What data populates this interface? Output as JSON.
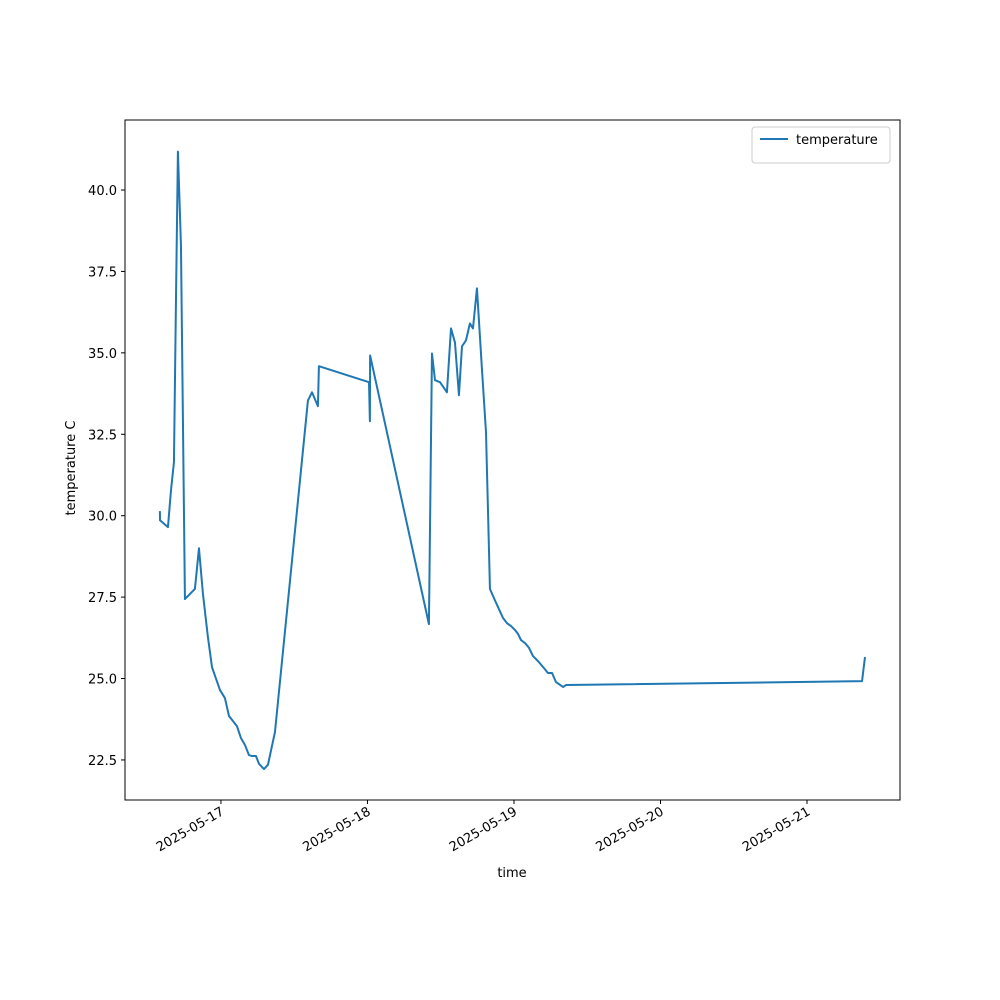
{
  "chart_data": {
    "type": "line",
    "x_label": "time",
    "y_label": "temperature C",
    "x": [
      "2025-05-16 14:00",
      "2025-05-16 14:01",
      "2025-05-16 15:19",
      "2025-05-16 15:49",
      "2025-05-16 16:18",
      "2025-05-16 16:38",
      "2025-05-16 16:57",
      "2025-05-16 17:27",
      "2025-05-16 18:06",
      "2025-05-16 19:44",
      "2025-05-16 20:24",
      "2025-05-16 21:03",
      "2025-05-16 21:52",
      "2025-05-16 22:32",
      "2025-05-16 23:11",
      "2025-05-16 23:50",
      "2025-05-17 00:39",
      "2025-05-17 01:19",
      "2025-05-17 02:37",
      "2025-05-17 03:17",
      "2025-05-17 03:56",
      "2025-05-17 04:35",
      "2025-05-17 05:05",
      "2025-05-17 05:44",
      "2025-05-17 06:14",
      "2025-05-17 07:03",
      "2025-05-17 07:42",
      "2025-05-17 08:51",
      "2025-05-17 14:15",
      "2025-05-17 14:55",
      "2025-05-17 15:53",
      "2025-05-17 16:03",
      "2025-05-18 00:15",
      "2025-05-18 00:24",
      "2025-05-18 00:26",
      "2025-05-18 10:04",
      "2025-05-18 10:34",
      "2025-05-18 11:04",
      "2025-05-18 11:53",
      "2025-05-18 13:01",
      "2025-05-18 13:41",
      "2025-05-18 14:20",
      "2025-05-18 14:59",
      "2025-05-18 15:29",
      "2025-05-18 16:08",
      "2025-05-18 16:47",
      "2025-05-18 17:17",
      "2025-05-18 17:56",
      "2025-05-18 18:46",
      "2025-05-18 19:25",
      "2025-05-18 20:04",
      "2025-05-18 20:53",
      "2025-05-18 22:12",
      "2025-05-18 22:51",
      "2025-05-18 23:31",
      "2025-05-19 00:10",
      "2025-05-19 00:40",
      "2025-05-19 01:09",
      "2025-05-19 01:48",
      "2025-05-19 02:28",
      "2025-05-19 03:07",
      "2025-05-19 04:06",
      "2025-05-19 04:55",
      "2025-05-19 05:34",
      "2025-05-19 06:14",
      "2025-05-19 06:53",
      "2025-05-19 08:02",
      "2025-05-19 08:31",
      "2025-05-21 09:01",
      "2025-05-21 09:30"
    ],
    "series": [
      {
        "name": "temperature",
        "color": "#1f77b4",
        "values": [
          30.14,
          29.86,
          29.65,
          30.78,
          31.64,
          36.6,
          41.18,
          38.3,
          27.44,
          27.75,
          29.0,
          27.6,
          26.27,
          25.35,
          25.0,
          24.65,
          24.4,
          23.85,
          23.54,
          23.17,
          22.96,
          22.65,
          22.62,
          22.62,
          22.38,
          22.22,
          22.35,
          23.36,
          33.54,
          33.79,
          33.36,
          34.59,
          34.1,
          32.9,
          34.92,
          26.67,
          34.98,
          34.16,
          34.1,
          33.79,
          35.75,
          35.32,
          33.7,
          35.2,
          35.38,
          35.9,
          35.75,
          36.98,
          34.46,
          32.56,
          27.75,
          27.4,
          26.86,
          26.7,
          26.61,
          26.49,
          26.37,
          26.18,
          26.09,
          25.94,
          25.69,
          25.5,
          25.32,
          25.17,
          25.17,
          24.89,
          24.74,
          24.8,
          24.92,
          25.66
        ]
      }
    ],
    "xlim": [
      "2025-05-16 08:17",
      "2025-05-21 15:14"
    ],
    "xticks": [
      "2025-05-17",
      "2025-05-18",
      "2025-05-19",
      "2025-05-20",
      "2025-05-21"
    ],
    "ylim": [
      21.27,
      42.15
    ],
    "yticks": [
      22.5,
      {
        "value": 25,
        "label": "25.0"
      },
      27.5,
      {
        "value": 30,
        "label": "30.0"
      },
      32.5,
      {
        "value": 35,
        "label": "35.0"
      },
      37.5,
      {
        "value": 40,
        "label": "40.0"
      }
    ],
    "grid": false,
    "legend": "upper right"
  }
}
